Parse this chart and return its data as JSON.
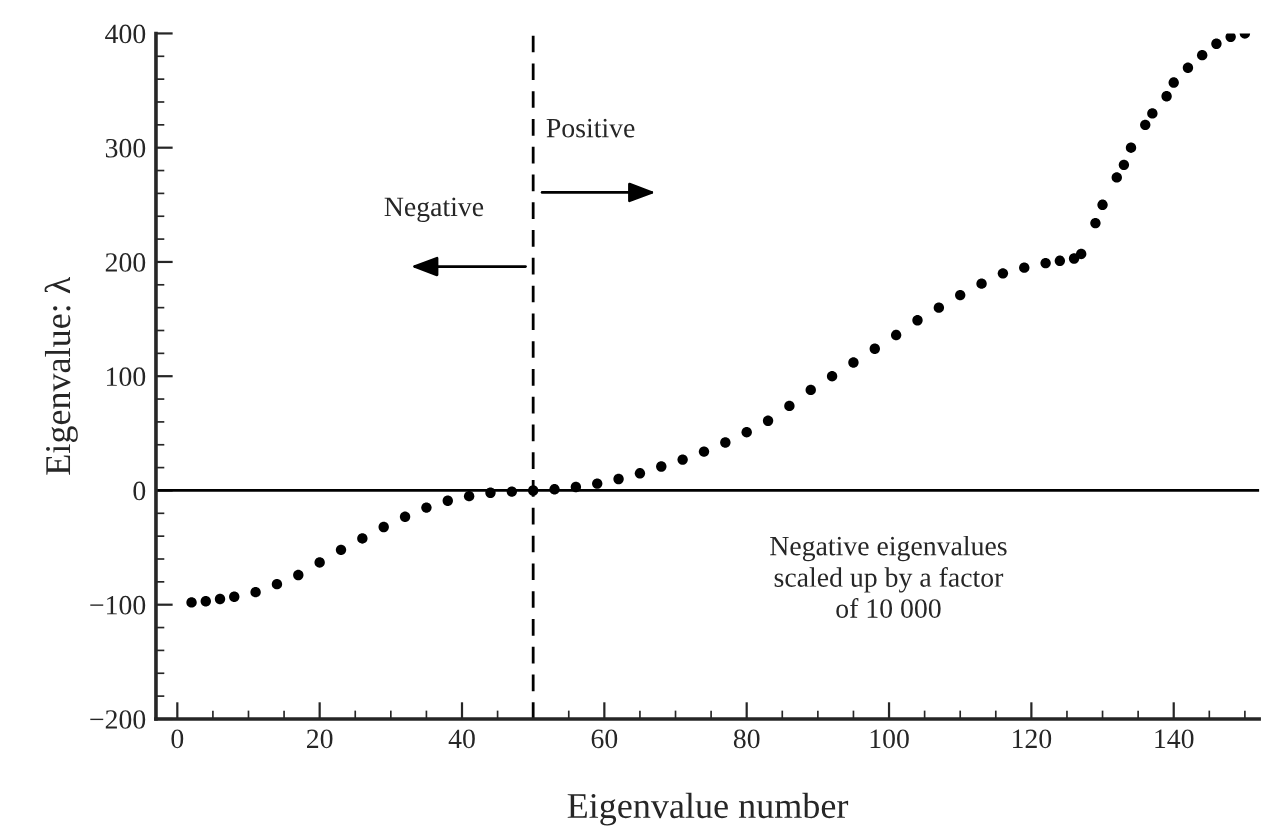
{
  "chart_data": {
    "type": "scatter",
    "xlabel": "Eigenvalue number",
    "ylabel": "Eigenvalue: λ",
    "series": [
      {
        "color": "#000000",
        "x": [
          2,
          4,
          6,
          8,
          11,
          14,
          17,
          20,
          23,
          26,
          29,
          32,
          35,
          38,
          41,
          44,
          47,
          50,
          53,
          56,
          59,
          62,
          65,
          68,
          71,
          74,
          77,
          80,
          83,
          86,
          89,
          92,
          95,
          98,
          101,
          104,
          107,
          110,
          113,
          116,
          119,
          122,
          124,
          126,
          127,
          129,
          130,
          132,
          133,
          134,
          136,
          137,
          139,
          140,
          142,
          144,
          146,
          148,
          150
        ],
        "values": [
          -98,
          -97,
          -95,
          -93,
          -89,
          -82,
          -74,
          -63,
          -52,
          -42,
          -32,
          -23,
          -15,
          -9,
          -5,
          -2,
          -1,
          0,
          1,
          3,
          6,
          10,
          15,
          21,
          27,
          34,
          42,
          51,
          61,
          74,
          88,
          100,
          112,
          124,
          136,
          149,
          160,
          171,
          181,
          190,
          195,
          199,
          201,
          203,
          207,
          234,
          250,
          274,
          285,
          300,
          320,
          330,
          345,
          357,
          370,
          381,
          391,
          397,
          400
        ]
      }
    ],
    "xlim": [
      -3,
      152
    ],
    "xticks": [
      0,
      20,
      40,
      60,
      80,
      100,
      120,
      140
    ],
    "ylim": [
      -200,
      400
    ],
    "yticks": [
      -200,
      -100,
      0,
      100,
      200,
      300,
      400
    ],
    "marker": "circle",
    "grid": false,
    "legend": false,
    "ref_lines": [
      {
        "axis": "y",
        "value": 0,
        "line_style": "solid"
      },
      {
        "axis": "x",
        "value": 50,
        "line_style": "dashed"
      }
    ],
    "annotations": [
      "Positive",
      "Negative",
      "Negative eigenvalues\nscaled up by a factor\nof 10 000"
    ]
  }
}
